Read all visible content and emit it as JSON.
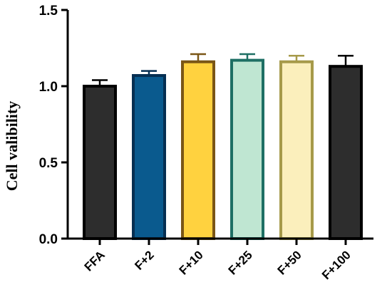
{
  "chart_data": {
    "type": "bar",
    "title": "",
    "xlabel": "",
    "ylabel": "Cell valibility",
    "ylim": [
      0,
      1.5
    ],
    "yticks": [
      "0.0",
      "0.5",
      "1.0",
      "1.5"
    ],
    "grid": false,
    "legend": "none",
    "categories": [
      "FFA",
      "F+2",
      "F+10",
      "F+25",
      "F+50",
      "F+100"
    ],
    "values": [
      1.0,
      1.07,
      1.16,
      1.17,
      1.16,
      1.13
    ],
    "errors": [
      0.04,
      0.03,
      0.05,
      0.04,
      0.04,
      0.07
    ],
    "fill_colors": [
      "#2d2d2d",
      "#0a5a8e",
      "#ffd23f",
      "#bfe6d2",
      "#fbefbc",
      "#2d2d2d"
    ],
    "border_colors": [
      "#000000",
      "#062f52",
      "#7a5616",
      "#1e6f64",
      "#a69a4a",
      "#000000"
    ]
  }
}
